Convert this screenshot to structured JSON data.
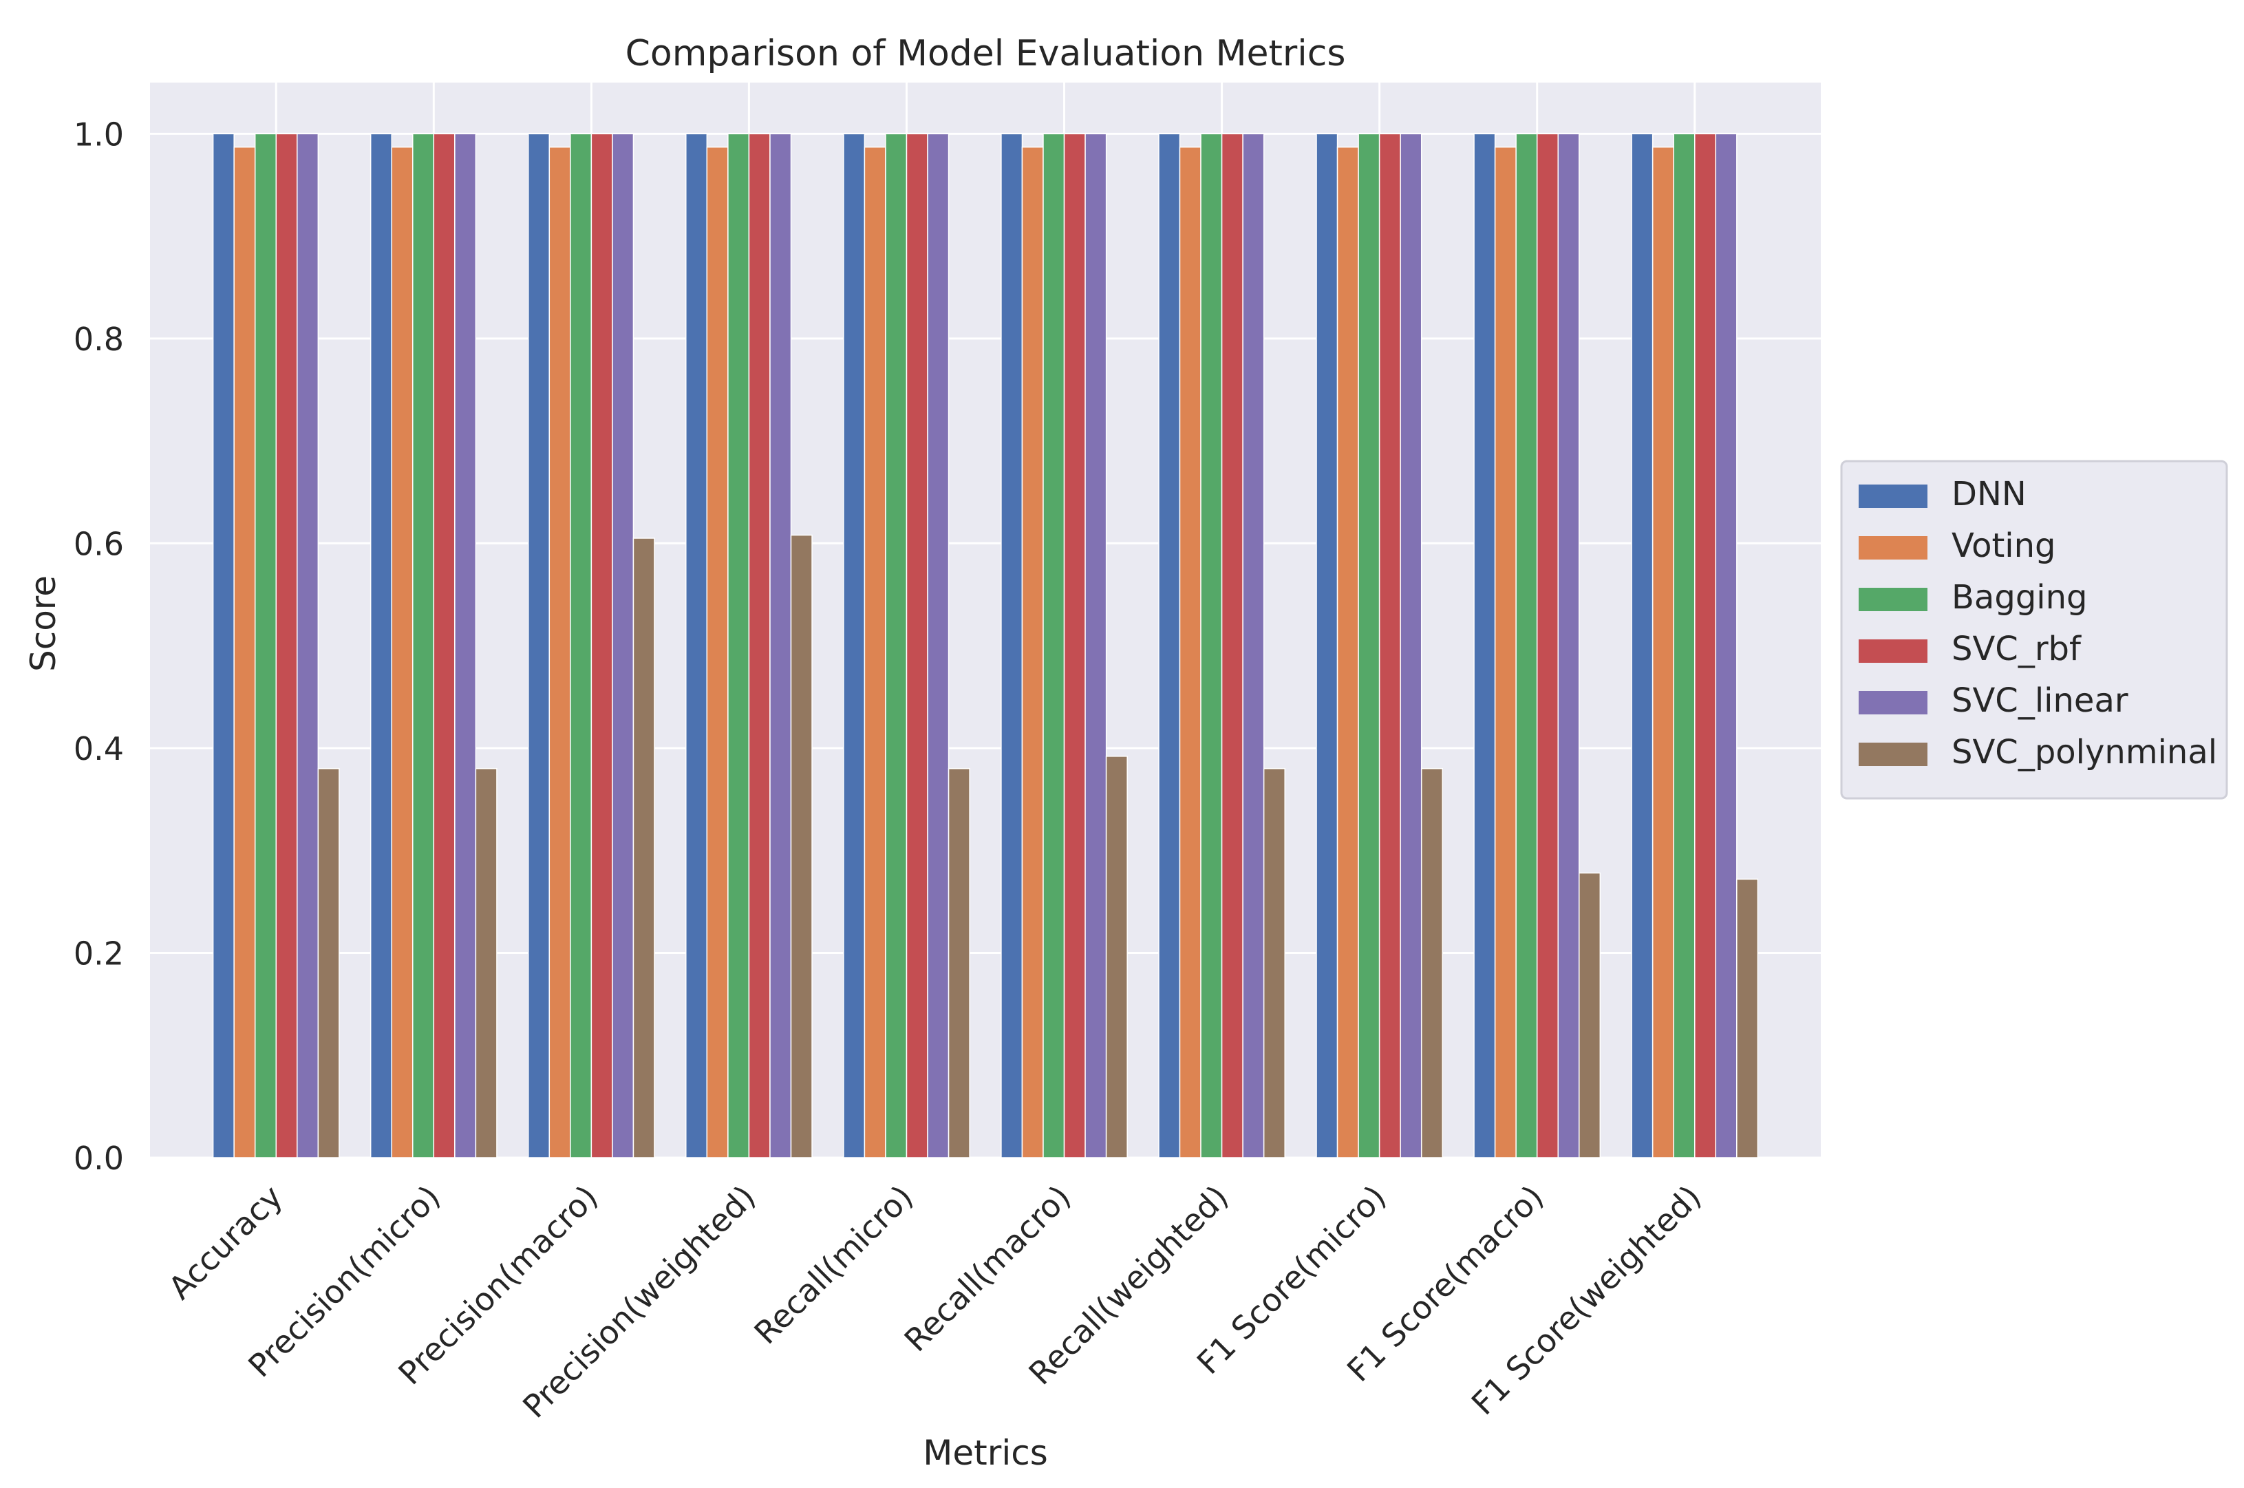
{
  "chart_data": {
    "type": "bar",
    "title": "Comparison of Model Evaluation Metrics",
    "xlabel": "Metrics",
    "ylabel": "Score",
    "ylim": [
      0,
      1.05
    ],
    "yticks": [
      "0.0",
      "0.2",
      "0.4",
      "0.6",
      "0.8",
      "1.0"
    ],
    "grid": true,
    "legend_position": "right",
    "categories": [
      "Accuracy",
      "Precision(micro)",
      "Precision(macro)",
      "Precision(weighted)",
      "Recall(micro)",
      "Recall(macro)",
      "Recall(weighted)",
      "F1 Score(micro)",
      "F1 Score(macro)",
      "F1 Score(weighted)"
    ],
    "series": [
      {
        "name": "DNN",
        "color": "#4c72b0",
        "values": [
          1.0,
          1.0,
          1.0,
          1.0,
          1.0,
          1.0,
          1.0,
          1.0,
          1.0,
          1.0
        ]
      },
      {
        "name": "Voting",
        "color": "#dd8452",
        "values": [
          0.987,
          0.987,
          0.987,
          0.987,
          0.987,
          0.987,
          0.987,
          0.987,
          0.987,
          0.987
        ]
      },
      {
        "name": "Bagging",
        "color": "#55a868",
        "values": [
          1.0,
          1.0,
          1.0,
          1.0,
          1.0,
          1.0,
          1.0,
          1.0,
          1.0,
          1.0
        ]
      },
      {
        "name": "SVC_rbf",
        "color": "#c44e52",
        "values": [
          1.0,
          1.0,
          1.0,
          1.0,
          1.0,
          1.0,
          1.0,
          1.0,
          1.0,
          1.0
        ]
      },
      {
        "name": "SVC_linear",
        "color": "#8172b3",
        "values": [
          1.0,
          1.0,
          1.0,
          1.0,
          1.0,
          1.0,
          1.0,
          1.0,
          1.0,
          1.0
        ]
      },
      {
        "name": "SVC_polynminal",
        "color": "#937860",
        "values": [
          0.38,
          0.38,
          0.605,
          0.608,
          0.38,
          0.392,
          0.38,
          0.38,
          0.278,
          0.272
        ]
      }
    ]
  }
}
